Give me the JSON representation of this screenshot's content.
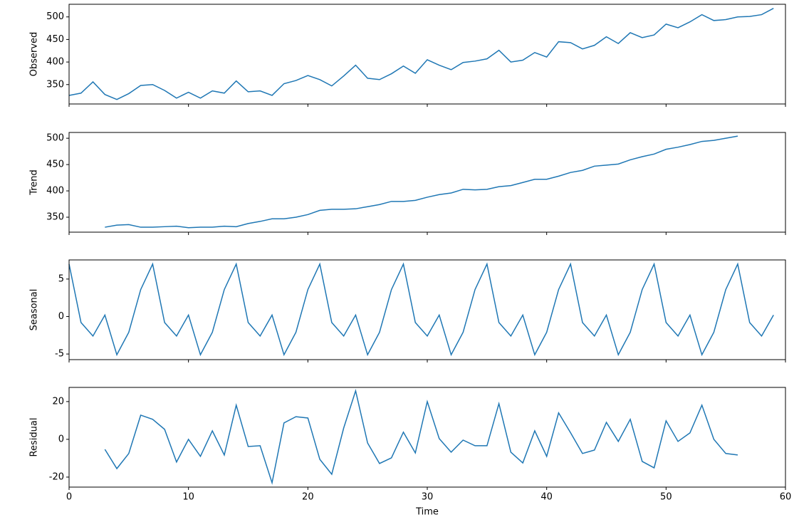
{
  "chart_data": [
    {
      "type": "line",
      "ylabel": "Observed",
      "color": "#1f77b4",
      "xlim": [
        0,
        60
      ],
      "ylim": [
        307,
        528
      ],
      "yticks": [
        350,
        400,
        450,
        500
      ],
      "x": [
        0,
        1,
        2,
        3,
        4,
        5,
        6,
        7,
        8,
        9,
        10,
        11,
        12,
        13,
        14,
        15,
        16,
        17,
        18,
        19,
        20,
        21,
        22,
        23,
        24,
        25,
        26,
        27,
        28,
        29,
        30,
        31,
        32,
        33,
        34,
        35,
        36,
        37,
        38,
        39,
        40,
        41,
        42,
        43,
        44,
        45,
        46,
        47,
        48,
        49,
        50,
        51,
        52,
        53,
        54,
        55,
        56,
        57,
        58,
        59
      ],
      "values": [
        326,
        331,
        356,
        328,
        317,
        330,
        348,
        350,
        337,
        320,
        333,
        320,
        336,
        331,
        358,
        334,
        336,
        326,
        352,
        359,
        370,
        361,
        347,
        369,
        393,
        364,
        361,
        374,
        391,
        375,
        405,
        393,
        383,
        399,
        402,
        407,
        426,
        400,
        404,
        421,
        411,
        445,
        443,
        429,
        437,
        456,
        441,
        465,
        454,
        460,
        484,
        476,
        489,
        505,
        492,
        494,
        500,
        501,
        505,
        519
      ]
    },
    {
      "type": "line",
      "ylabel": "Trend",
      "color": "#1f77b4",
      "xlim": [
        0,
        60
      ],
      "ylim": [
        321.6,
        511
      ],
      "yticks": [
        350,
        400,
        450,
        500
      ],
      "x": [
        0,
        1,
        2,
        3,
        4,
        5,
        6,
        7,
        8,
        9,
        10,
        11,
        12,
        13,
        14,
        15,
        16,
        17,
        18,
        19,
        20,
        21,
        22,
        23,
        24,
        25,
        26,
        27,
        28,
        29,
        30,
        31,
        32,
        33,
        34,
        35,
        36,
        37,
        38,
        39,
        40,
        41,
        42,
        43,
        44,
        45,
        46,
        47,
        48,
        49,
        50,
        51,
        52,
        53,
        54,
        55,
        56,
        57,
        58,
        59
      ],
      "values": [
        null,
        null,
        null,
        331,
        335,
        336,
        331,
        331,
        332,
        333,
        330,
        331,
        331,
        333,
        332,
        338,
        342,
        347,
        347,
        350,
        355,
        363,
        365,
        365,
        366,
        370,
        374,
        380,
        380,
        382,
        388,
        393,
        396,
        403,
        402,
        403,
        408,
        410,
        416,
        422,
        422,
        428,
        435,
        439,
        447,
        449,
        451,
        459,
        465,
        470,
        479,
        483,
        488,
        494,
        496,
        500,
        504,
        null,
        null,
        null
      ]
    },
    {
      "type": "line",
      "ylabel": "Seasonal",
      "color": "#1f77b4",
      "xlim": [
        0,
        60
      ],
      "ylim": [
        -5.75,
        7.55
      ],
      "yticks": [
        -5,
        0,
        5
      ],
      "x": [
        0,
        1,
        2,
        3,
        4,
        5,
        6,
        7,
        8,
        9,
        10,
        11,
        12,
        13,
        14,
        15,
        16,
        17,
        18,
        19,
        20,
        21,
        22,
        23,
        24,
        25,
        26,
        27,
        28,
        29,
        30,
        31,
        32,
        33,
        34,
        35,
        36,
        37,
        38,
        39,
        40,
        41,
        42,
        43,
        44,
        45,
        46,
        47,
        48,
        49,
        50,
        51,
        52,
        53,
        54,
        55,
        56,
        57,
        58,
        59
      ],
      "values": [
        7.0,
        -0.8,
        -2.6,
        0.2,
        -5.1,
        -2.1,
        3.6,
        7.0,
        -0.8,
        -2.6,
        0.2,
        -5.1,
        -2.1,
        3.6,
        7.0,
        -0.8,
        -2.6,
        0.2,
        -5.1,
        -2.1,
        3.6,
        7.0,
        -0.8,
        -2.6,
        0.2,
        -5.1,
        -2.1,
        3.6,
        7.0,
        -0.8,
        -2.6,
        0.2,
        -5.1,
        -2.1,
        3.6,
        7.0,
        -0.8,
        -2.6,
        0.2,
        -5.1,
        -2.1,
        3.6,
        7.0,
        -0.8,
        -2.6,
        0.2,
        -5.1,
        -2.1,
        3.6,
        7.0,
        -0.8,
        -2.6,
        0.2,
        -5.1,
        -2.1,
        3.6,
        7.0,
        -0.8,
        -2.6,
        0.2
      ]
    },
    {
      "type": "line",
      "ylabel": "Residual",
      "xlabel": "Time",
      "color": "#1f77b4",
      "xlim": [
        0,
        60
      ],
      "xticks": [
        0,
        10,
        20,
        30,
        40,
        50,
        60
      ],
      "ylim": [
        -25.3,
        27.5
      ],
      "yticks": [
        -20,
        0,
        20
      ],
      "x": [
        0,
        1,
        2,
        3,
        4,
        5,
        6,
        7,
        8,
        9,
        10,
        11,
        12,
        13,
        14,
        15,
        16,
        17,
        18,
        19,
        20,
        21,
        22,
        23,
        24,
        25,
        26,
        27,
        28,
        29,
        30,
        31,
        32,
        33,
        34,
        35,
        36,
        37,
        38,
        39,
        40,
        41,
        42,
        43,
        44,
        45,
        46,
        47,
        48,
        49,
        50,
        51,
        52,
        53,
        54,
        55,
        56,
        57,
        58,
        59
      ],
      "values": [
        null,
        null,
        null,
        -5.3,
        -15.5,
        -7.5,
        12.8,
        10.6,
        5.3,
        -12,
        0,
        -9,
        4.5,
        -8.3,
        18.1,
        -3.8,
        -3.4,
        -23,
        8.7,
        12,
        11.3,
        -10.6,
        -18.5,
        6,
        25.7,
        -1.9,
        -12.8,
        -9.8,
        3.8,
        -7.2,
        20,
        0.4,
        -6.8,
        -0.4,
        -3.4,
        -3.4,
        18.9,
        -6.8,
        -12.5,
        4.5,
        -9,
        14,
        3.5,
        -7.5,
        -5.7,
        9,
        -1.1,
        10.6,
        -11.7,
        -15.1,
        9.8,
        -1.1,
        3.4,
        18.1,
        0,
        -7.5,
        -8.3,
        null,
        null,
        null
      ]
    }
  ]
}
